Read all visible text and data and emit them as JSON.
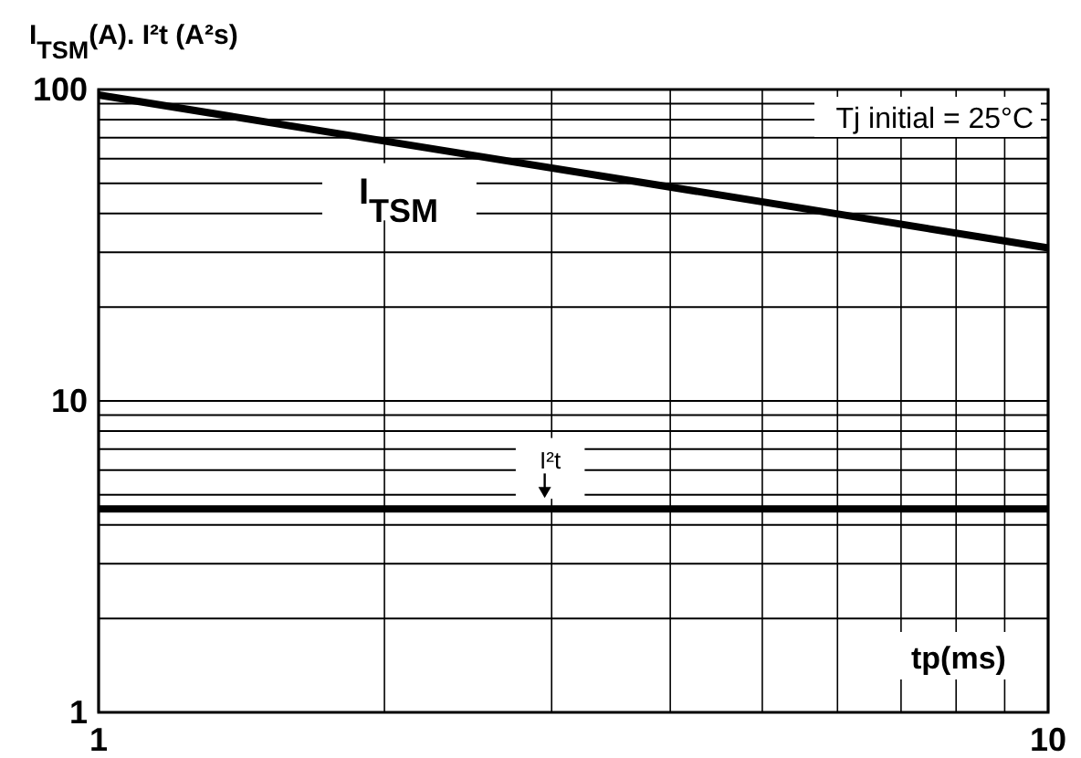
{
  "chart_data": {
    "type": "line",
    "title": "I$_{TSM}$(A). I²t (A²s)",
    "xlabel": "tp(ms)",
    "log": "xy",
    "grid": true,
    "marker": "none",
    "line_style": "solid",
    "x": [
      1,
      10
    ],
    "xlim": [
      1,
      10
    ],
    "xticks": [
      1,
      {
        "value": 2,
        "label": null
      },
      {
        "value": 3,
        "label": null
      },
      {
        "value": 4,
        "label": null
      },
      {
        "value": 5,
        "label": null
      },
      {
        "value": 6,
        "label": null
      },
      {
        "value": 7,
        "label": null
      },
      {
        "value": 8,
        "label": null
      },
      {
        "value": 9,
        "label": null
      },
      10
    ],
    "ylim": [
      1,
      100
    ],
    "yticks": [
      1,
      {
        "value": 2,
        "label": null
      },
      {
        "value": 3,
        "label": null
      },
      {
        "value": 4,
        "label": null
      },
      {
        "value": 5,
        "label": null
      },
      {
        "value": 6,
        "label": null
      },
      {
        "value": 7,
        "label": null
      },
      {
        "value": 8,
        "label": null
      },
      {
        "value": 9,
        "label": null
      },
      10,
      {
        "value": 20,
        "label": null
      },
      {
        "value": 30,
        "label": null
      },
      {
        "value": 40,
        "label": null
      },
      {
        "value": 50,
        "label": null
      },
      {
        "value": 60,
        "label": null
      },
      {
        "value": 70,
        "label": null
      },
      {
        "value": 80,
        "label": null
      },
      {
        "value": 90,
        "label": null
      },
      100
    ],
    "series": [
      {
        "name": "I$_{TSM}$",
        "color": "#000000",
        "values": [
          96,
          31
        ]
      },
      {
        "name": "I²t",
        "color": "#000000",
        "values": [
          4.5,
          4.5
        ]
      }
    ],
    "annotations": [
      "Tj initial = 25°C"
    ]
  }
}
